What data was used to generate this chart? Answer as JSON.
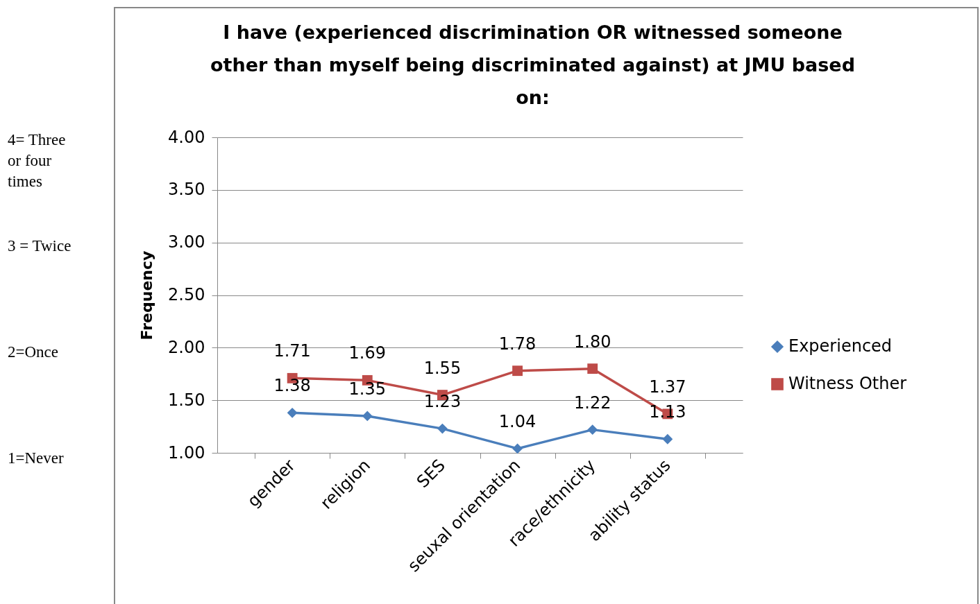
{
  "chart_data": {
    "type": "line",
    "title": [
      "I have (experienced discrimination OR witnessed someone",
      "other than myself being discriminated against) at JMU based",
      "on:"
    ],
    "ylabel": "Frequency",
    "categories": [
      "gender",
      "religion",
      "SES",
      "seuxal orientation",
      "race/ethnicity",
      "ability status"
    ],
    "series": [
      {
        "name": "Experienced",
        "color": "#4a7ebb",
        "marker": "diamond",
        "values": [
          1.38,
          1.35,
          1.23,
          1.04,
          1.22,
          1.13
        ],
        "value_labels": [
          "1.38",
          "1.35",
          "1.23",
          "1.04",
          "1.22",
          "1.13"
        ]
      },
      {
        "name": "Witness Other",
        "color": "#be4b48",
        "marker": "square",
        "values": [
          1.71,
          1.69,
          1.55,
          1.78,
          1.8,
          1.37
        ],
        "value_labels": [
          "1.71",
          "1.69",
          "1.55",
          "1.78",
          "1.80",
          "1.37"
        ]
      }
    ],
    "ylim": [
      1,
      4
    ],
    "yticks": [
      {
        "value": 1,
        "label": "1.00"
      },
      {
        "value": 1.5,
        "label": "1.50"
      },
      {
        "value": 2,
        "label": "2.00"
      },
      {
        "value": 2.5,
        "label": "2.50"
      },
      {
        "value": 3,
        "label": "3.00"
      },
      {
        "value": 3.5,
        "label": "3.50"
      },
      {
        "value": 4,
        "label": "4.00"
      }
    ],
    "grid": "y",
    "legend": "right",
    "annotations": [
      "4= Three or four times",
      "3 = Twice",
      "2=Once",
      "1=Never"
    ]
  }
}
